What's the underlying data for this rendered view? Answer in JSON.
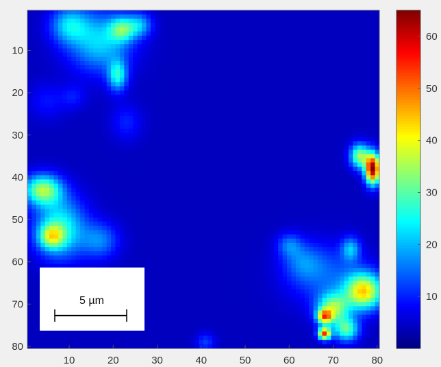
{
  "chart_data": {
    "type": "heatmap",
    "title": "",
    "xlabel": "",
    "ylabel": "",
    "xlim": [
      0.5,
      80.5
    ],
    "ylim": [
      80.5,
      0.5
    ],
    "x_ticks": [
      10,
      20,
      30,
      40,
      50,
      60,
      70,
      80
    ],
    "y_ticks": [
      10,
      20,
      30,
      40,
      50,
      60,
      70,
      80
    ],
    "colormap": "jet",
    "color_limits": [
      0,
      65
    ],
    "colorbar": {
      "location": "right",
      "ticks": [
        10,
        20,
        30,
        40,
        50,
        60
      ]
    },
    "background_value": 4,
    "hotspots": [
      {
        "x": 17,
        "y": 8,
        "sx": 5,
        "sy": 5,
        "peak": 18
      },
      {
        "x": 10,
        "y": 4,
        "sx": 3,
        "sy": 3,
        "peak": 16
      },
      {
        "x": 22,
        "y": 5,
        "sx": 2,
        "sy": 2,
        "peak": 20
      },
      {
        "x": 26,
        "y": 4,
        "sx": 2,
        "sy": 2,
        "peak": 14
      },
      {
        "x": 21,
        "y": 16,
        "sx": 1.5,
        "sy": 2.5,
        "peak": 20
      },
      {
        "x": 23,
        "y": 27,
        "sx": 2.5,
        "sy": 3,
        "peak": 6
      },
      {
        "x": 5,
        "y": 22,
        "sx": 3,
        "sy": 3,
        "peak": 5
      },
      {
        "x": 11,
        "y": 21,
        "sx": 2,
        "sy": 2,
        "peak": 5
      },
      {
        "x": 4,
        "y": 43,
        "sx": 3,
        "sy": 2.5,
        "peak": 30
      },
      {
        "x": 8,
        "y": 52,
        "sx": 4,
        "sy": 5,
        "peak": 22
      },
      {
        "x": 6,
        "y": 54,
        "sx": 2,
        "sy": 2,
        "peak": 22
      },
      {
        "x": 17,
        "y": 55,
        "sx": 3,
        "sy": 3,
        "peak": 12
      },
      {
        "x": 79,
        "y": 38,
        "sx": 1.2,
        "sy": 2.5,
        "peak": 60
      },
      {
        "x": 76,
        "y": 35,
        "sx": 1.5,
        "sy": 2,
        "peak": 30
      },
      {
        "x": 77,
        "y": 67,
        "sx": 3,
        "sy": 3,
        "peak": 38
      },
      {
        "x": 70,
        "y": 71,
        "sx": 2.5,
        "sy": 2.5,
        "peak": 28
      },
      {
        "x": 68,
        "y": 73,
        "sx": 1.2,
        "sy": 1.2,
        "peak": 35
      },
      {
        "x": 73,
        "y": 76,
        "sx": 2,
        "sy": 2,
        "peak": 25
      },
      {
        "x": 68,
        "y": 77,
        "sx": 1,
        "sy": 1,
        "peak": 48
      },
      {
        "x": 68,
        "y": 63,
        "sx": 6,
        "sy": 5,
        "peak": 10
      },
      {
        "x": 63,
        "y": 60,
        "sx": 3,
        "sy": 3,
        "peak": 8
      },
      {
        "x": 60,
        "y": 56,
        "sx": 2,
        "sy": 2,
        "peak": 10
      },
      {
        "x": 74,
        "y": 57,
        "sx": 1.5,
        "sy": 2,
        "peak": 15
      },
      {
        "x": 41,
        "y": 79,
        "sx": 1.5,
        "sy": 1.5,
        "peak": 8
      }
    ],
    "annotations": [
      {
        "type": "scale_bar",
        "label": "5 µm"
      }
    ]
  }
}
